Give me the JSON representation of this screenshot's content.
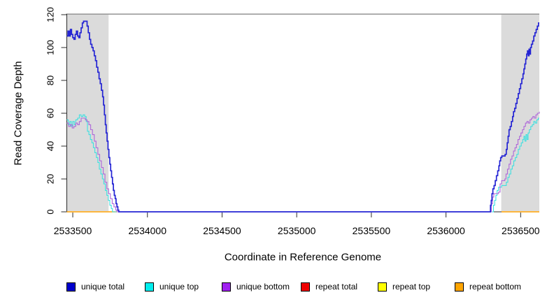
{
  "chart_data": {
    "type": "line",
    "title": "",
    "xlabel": "Coordinate in Reference Genome",
    "ylabel": "Read Coverage Depth",
    "xlim": [
      2533460,
      2536625
    ],
    "ylim": [
      0,
      120
    ],
    "grid": false,
    "legend_position": "bottom",
    "xticks": [
      2533500,
      2534000,
      2534500,
      2535000,
      2535500,
      2536000,
      2536500
    ],
    "xtick_labels": [
      "2533500",
      "2534000",
      "2534500",
      "2535000",
      "2535500",
      "2536000",
      "2536500"
    ],
    "yticks": [
      0,
      20,
      40,
      60,
      80,
      100,
      120
    ],
    "ytick_labels": [
      "0",
      "20",
      "40",
      "60",
      "80",
      "100",
      "120"
    ],
    "colors": {
      "background": "#FFFFFF",
      "shaded": "#DBDBDB",
      "frame": "#8A8A8A",
      "axis": "#2B2B2B",
      "text": "#000000"
    },
    "shaded_regions": [
      {
        "x0": 2533460,
        "x1": 2533740
      },
      {
        "x0": 2536370,
        "x1": 2536625
      }
    ],
    "legend": [
      {
        "label": "unique total",
        "color": "#0000CD"
      },
      {
        "label": "unique top",
        "color": "#00EEEE"
      },
      {
        "label": "unique bottom",
        "color": "#A020F0"
      },
      {
        "label": "repeat total",
        "color": "#EE0000"
      },
      {
        "label": "repeat top",
        "color": "#FFFF00"
      },
      {
        "label": "repeat bottom",
        "color": "#FFA500"
      }
    ],
    "series": [
      {
        "name": "repeat total",
        "slug": "repeat-total",
        "color": "#EE0000",
        "width": 1.1,
        "segments": [
          [
            [
              2533460,
              0
            ],
            [
              2533795,
              0
            ]
          ],
          [
            [
              2536372,
              0
            ],
            [
              2536625,
              0
            ]
          ]
        ]
      },
      {
        "name": "repeat top",
        "slug": "repeat-top",
        "color": "#FFFF00",
        "width": 1.1,
        "segments": [
          [
            [
              2533460,
              0
            ],
            [
              2533795,
              0
            ]
          ],
          [
            [
              2536372,
              0
            ],
            [
              2536625,
              0
            ]
          ]
        ]
      },
      {
        "name": "repeat bottom",
        "slug": "repeat-bottom",
        "color": "#FFA000",
        "width": 1.4,
        "segments": [
          [
            [
              2533460,
              0
            ],
            [
              2533795,
              0
            ]
          ],
          [
            [
              2536372,
              0
            ],
            [
              2536625,
              0
            ]
          ]
        ]
      },
      {
        "name": "unique top",
        "slug": "unique-top",
        "color": "#3FE0E0",
        "width": 1.1,
        "segments": [
          [
            [
              2533460,
              56
            ],
            [
              2533470,
              53
            ],
            [
              2533480,
              55
            ],
            [
              2533490,
              52
            ],
            [
              2533500,
              55
            ],
            [
              2533510,
              53
            ],
            [
              2533520,
              56
            ],
            [
              2533532,
              57
            ],
            [
              2533544,
              59
            ],
            [
              2533556,
              58
            ],
            [
              2533568,
              59
            ],
            [
              2533580,
              58
            ],
            [
              2533590,
              55
            ],
            [
              2533598,
              49
            ],
            [
              2533608,
              47
            ],
            [
              2533618,
              44
            ],
            [
              2533628,
              42
            ],
            [
              2533638,
              39
            ],
            [
              2533648,
              36
            ],
            [
              2533658,
              33
            ],
            [
              2533668,
              30
            ],
            [
              2533678,
              26
            ],
            [
              2533688,
              23
            ],
            [
              2533698,
              20
            ],
            [
              2533708,
              17
            ],
            [
              2533718,
              13
            ],
            [
              2533728,
              10
            ],
            [
              2533738,
              7
            ],
            [
              2533748,
              4
            ],
            [
              2533758,
              2
            ],
            [
              2533766,
              0
            ],
            [
              2536312,
              0
            ],
            [
              2536318,
              4
            ],
            [
              2536326,
              7
            ],
            [
              2536334,
              10
            ],
            [
              2536342,
              13
            ],
            [
              2536352,
              15
            ],
            [
              2536372,
              16
            ],
            [
              2536396,
              16
            ],
            [
              2536404,
              18
            ],
            [
              2536414,
              21
            ],
            [
              2536424,
              23
            ],
            [
              2536434,
              26
            ],
            [
              2536444,
              28
            ],
            [
              2536454,
              31
            ],
            [
              2536464,
              33
            ],
            [
              2536474,
              35
            ],
            [
              2536484,
              38
            ],
            [
              2536494,
              40
            ],
            [
              2536504,
              42
            ],
            [
              2536514,
              44
            ],
            [
              2536522,
              46
            ],
            [
              2536529,
              43
            ],
            [
              2536536,
              47
            ],
            [
              2536543,
              44
            ],
            [
              2536550,
              48
            ],
            [
              2536558,
              50
            ],
            [
              2536568,
              52
            ],
            [
              2536578,
              53
            ],
            [
              2536588,
              55
            ],
            [
              2536598,
              54
            ],
            [
              2536608,
              56
            ],
            [
              2536618,
              57
            ],
            [
              2536625,
              57
            ]
          ]
        ]
      },
      {
        "name": "unique bottom",
        "slug": "unique-bottom",
        "color": "#AE68D9",
        "width": 1.1,
        "segments": [
          [
            [
              2533460,
              54
            ],
            [
              2533472,
              52
            ],
            [
              2533484,
              53
            ],
            [
              2533496,
              51
            ],
            [
              2533508,
              52
            ],
            [
              2533520,
              54
            ],
            [
              2533532,
              53
            ],
            [
              2533544,
              55
            ],
            [
              2533556,
              57
            ],
            [
              2533570,
              57
            ],
            [
              2533584,
              56
            ],
            [
              2533596,
              55
            ],
            [
              2533608,
              53
            ],
            [
              2533620,
              50
            ],
            [
              2533632,
              47
            ],
            [
              2533644,
              43
            ],
            [
              2533656,
              39
            ],
            [
              2533668,
              35
            ],
            [
              2533680,
              31
            ],
            [
              2533692,
              27
            ],
            [
              2533704,
              23
            ],
            [
              2533716,
              18
            ],
            [
              2533728,
              14
            ],
            [
              2533740,
              11
            ],
            [
              2533752,
              8
            ],
            [
              2533764,
              5
            ],
            [
              2533776,
              3
            ],
            [
              2533788,
              1
            ],
            [
              2533796,
              0
            ],
            [
              2536296,
              0
            ],
            [
              2536304,
              5
            ],
            [
              2536312,
              9
            ],
            [
              2536320,
              11
            ],
            [
              2536352,
              12
            ],
            [
              2536362,
              17
            ],
            [
              2536372,
              19
            ],
            [
              2536394,
              20
            ],
            [
              2536402,
              23
            ],
            [
              2536412,
              26
            ],
            [
              2536422,
              29
            ],
            [
              2536432,
              32
            ],
            [
              2536442,
              34
            ],
            [
              2536452,
              37
            ],
            [
              2536462,
              39
            ],
            [
              2536472,
              41
            ],
            [
              2536482,
              44
            ],
            [
              2536492,
              46
            ],
            [
              2536502,
              48
            ],
            [
              2536512,
              50
            ],
            [
              2536522,
              52
            ],
            [
              2536532,
              54
            ],
            [
              2536542,
              55
            ],
            [
              2536552,
              54
            ],
            [
              2536562,
              56
            ],
            [
              2536572,
              57
            ],
            [
              2536582,
              58
            ],
            [
              2536592,
              57
            ],
            [
              2536602,
              59
            ],
            [
              2536612,
              60
            ],
            [
              2536625,
              61
            ]
          ]
        ]
      },
      {
        "name": "unique total",
        "slug": "unique-total",
        "color": "#2424D4",
        "width": 1.7,
        "segments": [
          [
            [
              2533460,
              107
            ],
            [
              2533468,
              110
            ],
            [
              2533476,
              107
            ],
            [
              2533484,
              111
            ],
            [
              2533492,
              108
            ],
            [
              2533500,
              106
            ],
            [
              2533508,
              105
            ],
            [
              2533516,
              108
            ],
            [
              2533524,
              110
            ],
            [
              2533532,
              107
            ],
            [
              2533540,
              106
            ],
            [
              2533548,
              109
            ],
            [
              2533556,
              112
            ],
            [
              2533564,
              115
            ],
            [
              2533572,
              116
            ],
            [
              2533588,
              116
            ],
            [
              2533596,
              113
            ],
            [
              2533604,
              109
            ],
            [
              2533612,
              105
            ],
            [
              2533620,
              102
            ],
            [
              2533628,
              100
            ],
            [
              2533636,
              98
            ],
            [
              2533644,
              95
            ],
            [
              2533652,
              92
            ],
            [
              2533660,
              88
            ],
            [
              2533668,
              85
            ],
            [
              2533676,
              81
            ],
            [
              2533684,
              78
            ],
            [
              2533692,
              74
            ],
            [
              2533700,
              70
            ],
            [
              2533706,
              65
            ],
            [
              2533712,
              59
            ],
            [
              2533718,
              53
            ],
            [
              2533724,
              48
            ],
            [
              2533730,
              43
            ],
            [
              2533736,
              38
            ],
            [
              2533742,
              33
            ],
            [
              2533748,
              29
            ],
            [
              2533754,
              25
            ],
            [
              2533760,
              21
            ],
            [
              2533766,
              17
            ],
            [
              2533772,
              13
            ],
            [
              2533778,
              10
            ],
            [
              2533784,
              8
            ],
            [
              2533790,
              5
            ],
            [
              2533796,
              3
            ],
            [
              2533802,
              1
            ],
            [
              2533808,
              0
            ],
            [
              2536293,
              0
            ],
            [
              2536298,
              4
            ],
            [
              2536303,
              7
            ],
            [
              2536308,
              11
            ],
            [
              2536314,
              14
            ],
            [
              2536322,
              16
            ],
            [
              2536330,
              19
            ],
            [
              2536338,
              22
            ],
            [
              2536346,
              25
            ],
            [
              2536354,
              28
            ],
            [
              2536360,
              31
            ],
            [
              2536366,
              33
            ],
            [
              2536374,
              34
            ],
            [
              2536396,
              35
            ],
            [
              2536404,
              38
            ],
            [
              2536410,
              42
            ],
            [
              2536416,
              46
            ],
            [
              2536422,
              50
            ],
            [
              2536430,
              52
            ],
            [
              2536438,
              55
            ],
            [
              2536446,
              58
            ],
            [
              2536452,
              61
            ],
            [
              2536460,
              63
            ],
            [
              2536468,
              66
            ],
            [
              2536476,
              69
            ],
            [
              2536484,
              72
            ],
            [
              2536492,
              75
            ],
            [
              2536500,
              78
            ],
            [
              2536508,
              81
            ],
            [
              2536516,
              84
            ],
            [
              2536522,
              87
            ],
            [
              2536528,
              90
            ],
            [
              2536534,
              93
            ],
            [
              2536540,
              96
            ],
            [
              2536546,
              98
            ],
            [
              2536551,
              95
            ],
            [
              2536556,
              99
            ],
            [
              2536561,
              96
            ],
            [
              2536566,
              100
            ],
            [
              2536572,
              102
            ],
            [
              2536580,
              104
            ],
            [
              2536588,
              107
            ],
            [
              2536596,
              109
            ],
            [
              2536604,
              111
            ],
            [
              2536612,
              113
            ],
            [
              2536620,
              115
            ],
            [
              2536625,
              115
            ]
          ]
        ]
      }
    ]
  }
}
